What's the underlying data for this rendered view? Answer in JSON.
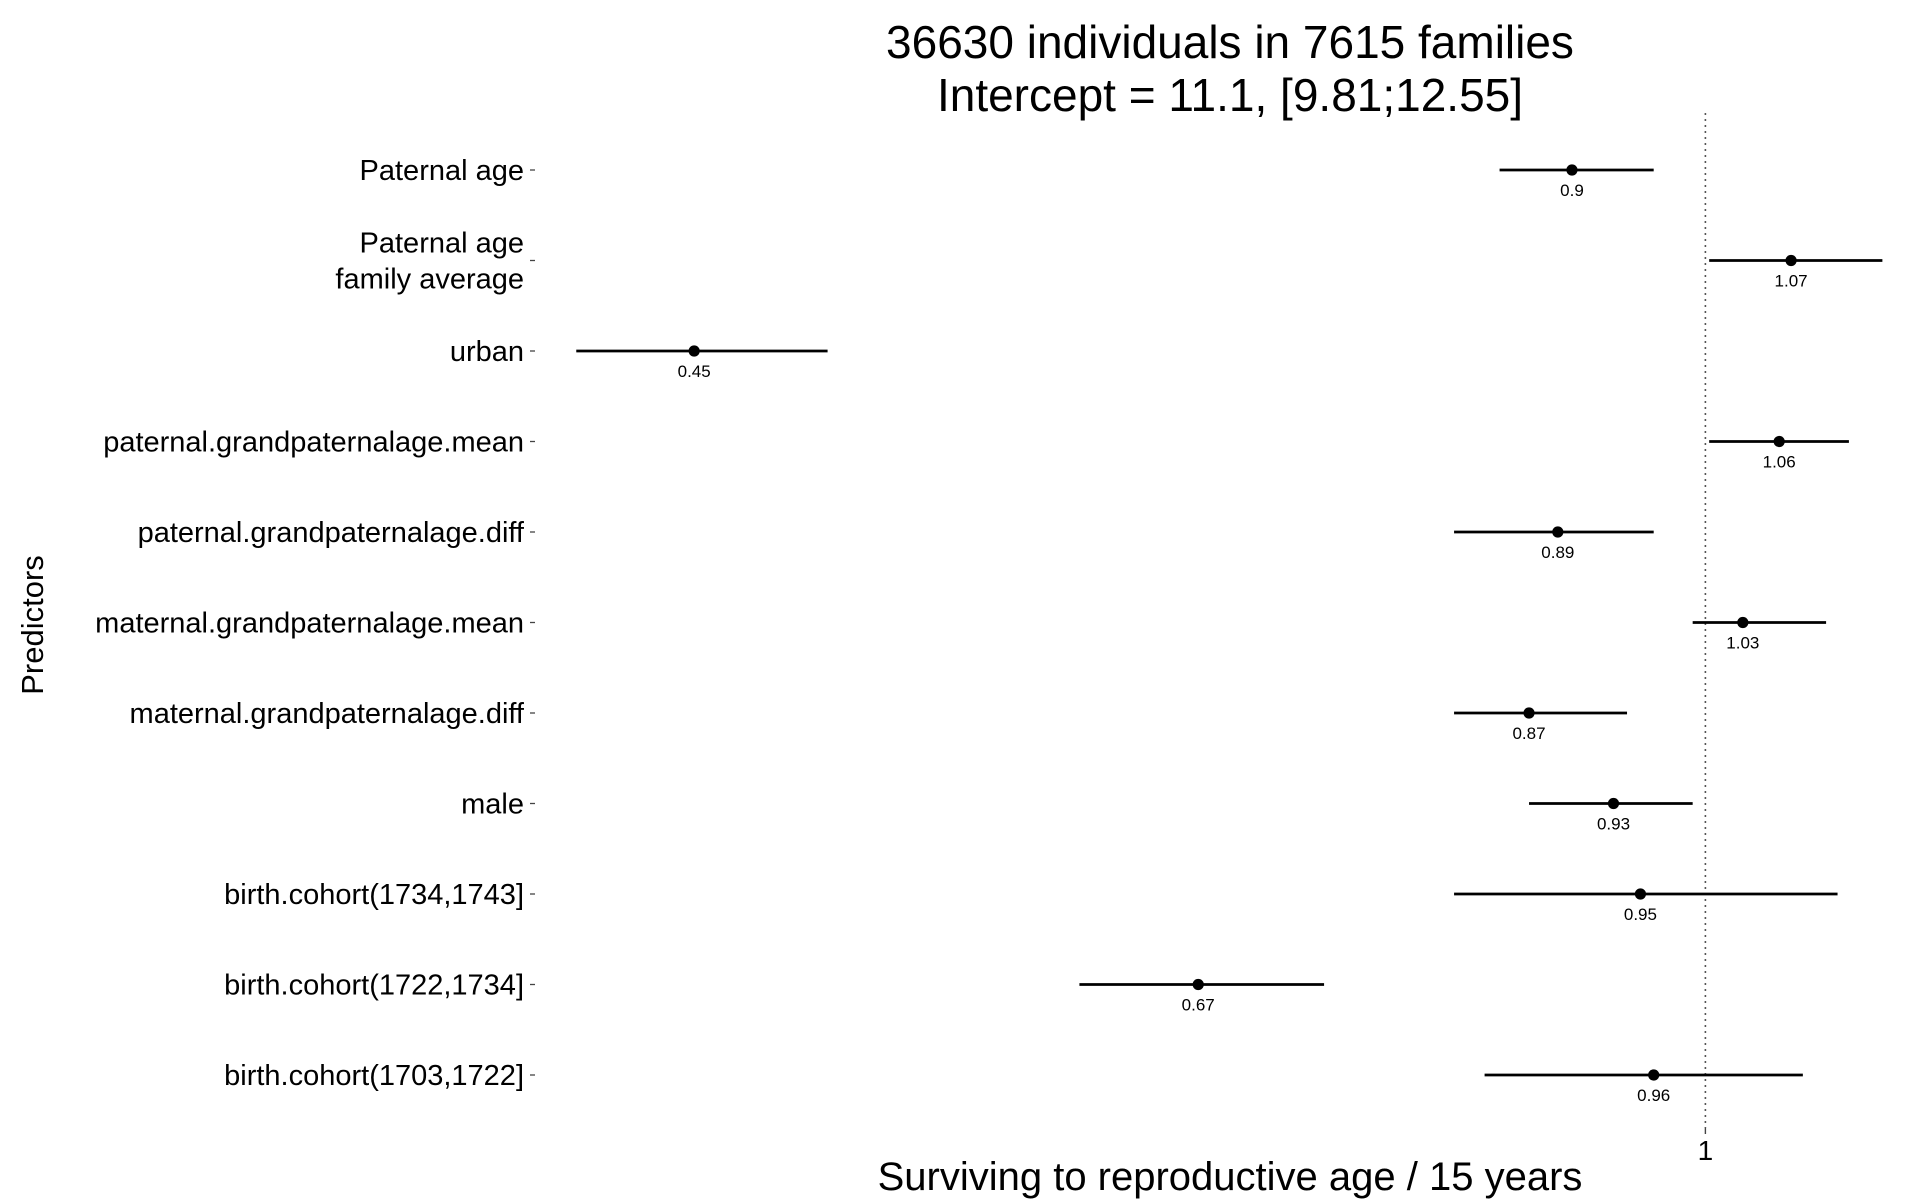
{
  "chart_data": {
    "type": "scatter",
    "title": "36630 individuals in 7615 families",
    "subtitle": "Intercept = 11.1, [9.81;12.55]",
    "xlabel": "Surviving to reproductive age / 15 years",
    "ylabel": "Predictors",
    "x_scale": "log",
    "xlim": [
      0.4,
      1.18
    ],
    "x_ticks": [
      1
    ],
    "x_tick_labels": [
      "1"
    ],
    "reference_line": 1,
    "grid": false,
    "legend": "none",
    "predictors": [
      {
        "label": "Paternal age",
        "estimate": 0.9,
        "lower": 0.85,
        "upper": 0.96,
        "estimate_label": "0.9"
      },
      {
        "label": "Paternal age\nfamily average",
        "estimate": 1.07,
        "lower": 1.003,
        "upper": 1.15,
        "estimate_label": "1.07"
      },
      {
        "label": "urban",
        "estimate": 0.45,
        "lower": 0.41,
        "upper": 0.5,
        "estimate_label": "0.45"
      },
      {
        "label": "paternal.grandpaternalage.mean",
        "estimate": 1.06,
        "lower": 1.003,
        "upper": 1.12,
        "estimate_label": "1.06"
      },
      {
        "label": "paternal.grandpaternalage.diff",
        "estimate": 0.89,
        "lower": 0.82,
        "upper": 0.96,
        "estimate_label": "0.89"
      },
      {
        "label": "maternal.grandpaternalage.mean",
        "estimate": 1.03,
        "lower": 0.99,
        "upper": 1.1,
        "estimate_label": "1.03"
      },
      {
        "label": "maternal.grandpaternalage.diff",
        "estimate": 0.87,
        "lower": 0.82,
        "upper": 0.94,
        "estimate_label": "0.87"
      },
      {
        "label": "male",
        "estimate": 0.93,
        "lower": 0.87,
        "upper": 0.99,
        "estimate_label": "0.93"
      },
      {
        "label": "birth.cohort(1734,1743]",
        "estimate": 0.95,
        "lower": 0.82,
        "upper": 1.11,
        "estimate_label": "0.95"
      },
      {
        "label": "birth.cohort(1722,1734]",
        "estimate": 0.67,
        "lower": 0.61,
        "upper": 0.74,
        "estimate_label": "0.67"
      },
      {
        "label": "birth.cohort(1703,1722]",
        "estimate": 0.96,
        "lower": 0.84,
        "upper": 1.08,
        "estimate_label": "0.96"
      }
    ]
  }
}
